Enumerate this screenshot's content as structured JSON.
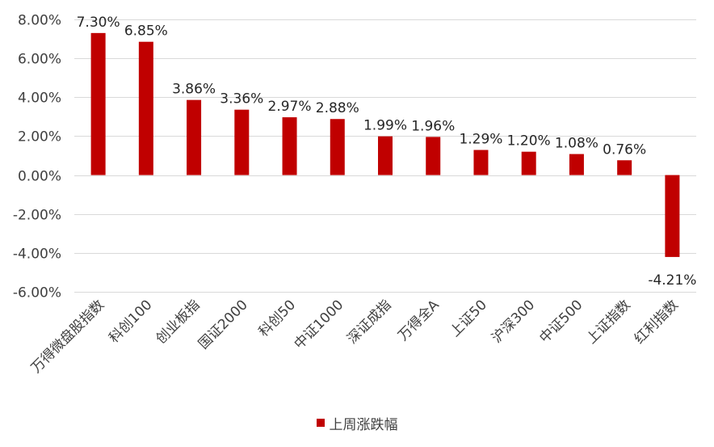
{
  "chart_data": {
    "type": "bar",
    "title": "",
    "xlabel": "",
    "ylabel": "",
    "categories": [
      "万得微盘股指数",
      "科创100",
      "创业板指",
      "国证2000",
      "科创50",
      "中证1000",
      "深证成指",
      "万得全A",
      "上证50",
      "沪深300",
      "中证500",
      "上证指数",
      "红利指数"
    ],
    "series": [
      {
        "name": "上周涨跌幅",
        "values": [
          7.3,
          6.85,
          3.86,
          3.36,
          2.97,
          2.88,
          1.99,
          1.96,
          1.29,
          1.2,
          1.08,
          0.76,
          -4.21
        ],
        "labels": [
          "7.30%",
          "6.85%",
          "3.86%",
          "3.36%",
          "2.97%",
          "2.88%",
          "1.99%",
          "1.96%",
          "1.29%",
          "1.20%",
          "1.08%",
          "0.76%",
          "-4.21%"
        ]
      }
    ],
    "ylim": [
      -6,
      8
    ],
    "yticks": [
      8,
      6,
      4,
      2,
      0,
      -2,
      -4,
      -6
    ],
    "ytick_labels": [
      "8.00%",
      "6.00%",
      "4.00%",
      "2.00%",
      "0.00%",
      "-2.00%",
      "-4.00%",
      "-6.00%"
    ],
    "grid": true,
    "legend_position": "bottom"
  },
  "legend": {
    "label": "上周涨跌幅"
  },
  "colors": {
    "bar": "#c00000",
    "grid": "#d9d9d9",
    "text": "#404040"
  }
}
